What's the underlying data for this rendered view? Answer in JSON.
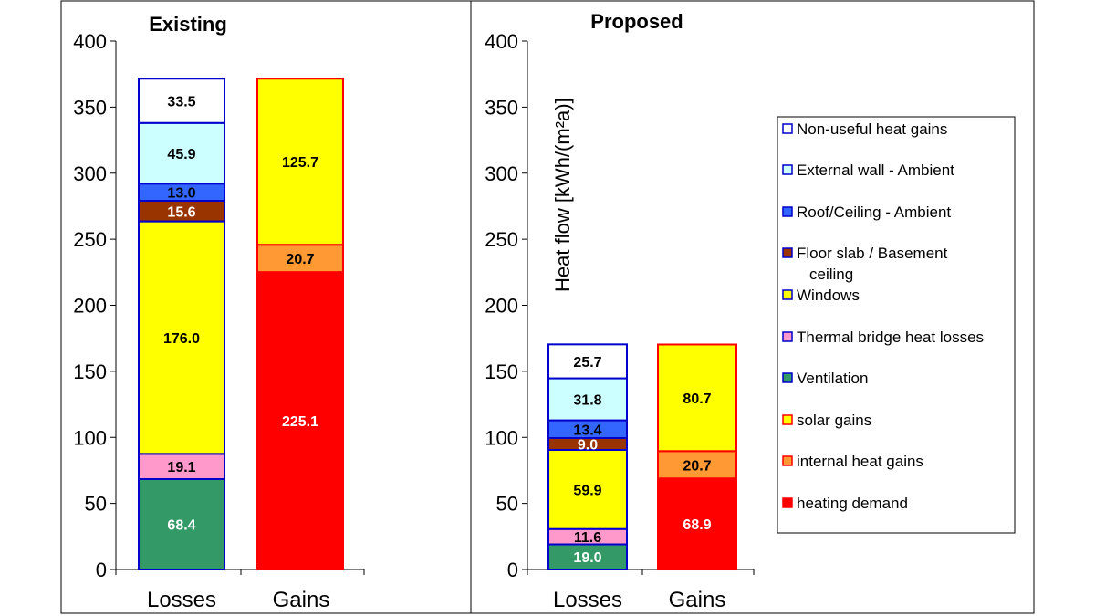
{
  "chart_data": [
    {
      "type": "bar",
      "stacked": true,
      "title": "Existing",
      "categories": [
        "Losses",
        "Gains"
      ],
      "ylim": [
        0,
        400
      ],
      "yticks": [
        0,
        50,
        100,
        150,
        200,
        250,
        300,
        350,
        400
      ],
      "ylabel": "",
      "series": [
        {
          "name": "Ventilation",
          "values": [
            68.4,
            null
          ]
        },
        {
          "name": "Thermal bridge heat losses",
          "values": [
            19.1,
            null
          ]
        },
        {
          "name": "Windows",
          "values": [
            176.0,
            null
          ]
        },
        {
          "name": "Floor slab / Basement ceiling",
          "values": [
            15.6,
            null
          ]
        },
        {
          "name": "Roof/Ceiling - Ambient",
          "values": [
            13.0,
            null
          ]
        },
        {
          "name": "External wall - Ambient",
          "values": [
            45.9,
            null
          ]
        },
        {
          "name": "Non-useful heat gains",
          "values": [
            33.5,
            null
          ]
        },
        {
          "name": "heating demand",
          "values": [
            null,
            225.1
          ]
        },
        {
          "name": "internal heat gains",
          "values": [
            null,
            20.7
          ]
        },
        {
          "name": "solar gains",
          "values": [
            null,
            125.7
          ]
        }
      ],
      "labels": [
        [
          "68.4",
          "19.1",
          "176.0",
          "15.6",
          "13.0",
          "45.9",
          "33.5"
        ],
        [
          "225.1",
          "20.7",
          "125.7"
        ]
      ]
    },
    {
      "type": "bar",
      "stacked": true,
      "title": "Proposed",
      "categories": [
        "Losses",
        "Gains"
      ],
      "ylim": [
        0,
        400
      ],
      "yticks": [
        0,
        50,
        100,
        150,
        200,
        250,
        300,
        350,
        400
      ],
      "ylabel": "Heat flow [kWh/(m²a)]",
      "series": [
        {
          "name": "Ventilation",
          "values": [
            19.0,
            null
          ]
        },
        {
          "name": "Thermal bridge heat losses",
          "values": [
            11.6,
            null
          ]
        },
        {
          "name": "Windows",
          "values": [
            59.9,
            null
          ]
        },
        {
          "name": "Floor slab / Basement ceiling",
          "values": [
            9.0,
            null
          ]
        },
        {
          "name": "Roof/Ceiling - Ambient",
          "values": [
            13.4,
            null
          ]
        },
        {
          "name": "External wall - Ambient",
          "values": [
            31.8,
            null
          ]
        },
        {
          "name": "Non-useful heat gains",
          "values": [
            25.7,
            null
          ]
        },
        {
          "name": "heating demand",
          "values": [
            null,
            68.9
          ]
        },
        {
          "name": "internal heat gains",
          "values": [
            null,
            20.7
          ]
        },
        {
          "name": "solar gains",
          "values": [
            null,
            80.7
          ]
        }
      ],
      "labels": [
        [
          "19.0",
          "11.6",
          "59.9",
          "9.0",
          "13.4",
          "31.8",
          "25.7"
        ],
        [
          "68.9",
          "20.7",
          "80.7"
        ]
      ]
    }
  ],
  "legend": [
    {
      "label": "Non-useful heat gains",
      "fill": "#FFFFFF",
      "stroke": "#0000CC",
      "text": "#000000"
    },
    {
      "label": "External wall - Ambient",
      "fill": "#CCFFFF",
      "stroke": "#0000CC",
      "text": "#000000"
    },
    {
      "label": "Roof/Ceiling - Ambient",
      "fill": "#3366FF",
      "stroke": "#0000CC",
      "text": "#000000"
    },
    {
      "label": "Floor slab / Basement ceiling",
      "fill": "#993300",
      "stroke": "#0000CC",
      "text": "#FFFFFF"
    },
    {
      "label": "Windows",
      "fill": "#FFFF00",
      "stroke": "#0000CC",
      "text": "#000000"
    },
    {
      "label": "Thermal bridge heat losses",
      "fill": "#FF99CC",
      "stroke": "#0000CC",
      "text": "#000000"
    },
    {
      "label": "Ventilation",
      "fill": "#339966",
      "stroke": "#0000CC",
      "text": "#FFFFFF"
    },
    {
      "label": "solar gains",
      "fill": "#FFFF00",
      "stroke": "#FF0000",
      "text": "#000000"
    },
    {
      "label": "internal heat gains",
      "fill": "#FF9933",
      "stroke": "#FF0000",
      "text": "#000000"
    },
    {
      "label": "heating demand",
      "fill": "#FF0000",
      "stroke": "#FF0000",
      "text": "#FFFFFF"
    }
  ]
}
